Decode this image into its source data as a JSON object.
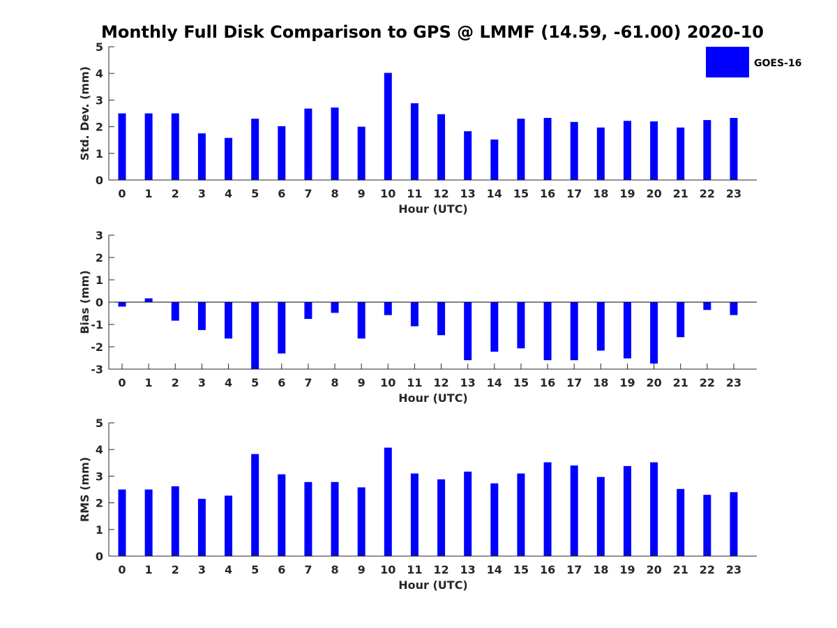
{
  "figure": {
    "title": "Monthly Full Disk Comparison to GPS @ LMMF (14.59, -61.00) 2020-10"
  },
  "legend": {
    "label": "GOES-16",
    "color": "#0000ff"
  },
  "chart_data": [
    {
      "type": "bar",
      "title": "",
      "xlabel": "Hour (UTC)",
      "ylabel": "Std. Dev. (mm)",
      "ylim": [
        0,
        5
      ],
      "yticks": [
        0,
        1,
        2,
        3,
        4,
        5
      ],
      "categories": [
        "0",
        "1",
        "2",
        "3",
        "4",
        "5",
        "6",
        "7",
        "8",
        "9",
        "10",
        "11",
        "12",
        "13",
        "14",
        "15",
        "16",
        "17",
        "18",
        "19",
        "20",
        "21",
        "22",
        "23"
      ],
      "series": [
        {
          "name": "GOES-16",
          "values": [
            2.5,
            2.5,
            2.5,
            1.75,
            1.58,
            2.3,
            2.02,
            2.68,
            2.72,
            2.0,
            4.02,
            2.88,
            2.47,
            1.83,
            1.52,
            2.3,
            2.33,
            2.18,
            1.97,
            2.22,
            2.2,
            1.97,
            2.25,
            2.33
          ]
        }
      ]
    },
    {
      "type": "bar",
      "title": "",
      "xlabel": "Hour (UTC)",
      "ylabel": "Bias (mm)",
      "ylim": [
        -3,
        3
      ],
      "yticks": [
        -3,
        -2,
        -1,
        0,
        1,
        2,
        3
      ],
      "categories": [
        "0",
        "1",
        "2",
        "3",
        "4",
        "5",
        "6",
        "7",
        "8",
        "9",
        "10",
        "11",
        "12",
        "13",
        "14",
        "15",
        "16",
        "17",
        "18",
        "19",
        "20",
        "21",
        "22",
        "23"
      ],
      "series": [
        {
          "name": "GOES-16",
          "values": [
            -0.2,
            0.17,
            -0.83,
            -1.25,
            -1.63,
            -3.0,
            -2.3,
            -0.75,
            -0.48,
            -1.63,
            -0.58,
            -1.08,
            -1.48,
            -2.6,
            -2.22,
            -2.07,
            -2.6,
            -2.6,
            -2.17,
            -2.52,
            -2.75,
            -1.57,
            -0.35,
            -0.58
          ]
        }
      ]
    },
    {
      "type": "bar",
      "title": "",
      "xlabel": "Hour (UTC)",
      "ylabel": "RMS (mm)",
      "ylim": [
        0,
        5
      ],
      "yticks": [
        0,
        1,
        2,
        3,
        4,
        5
      ],
      "categories": [
        "0",
        "1",
        "2",
        "3",
        "4",
        "5",
        "6",
        "7",
        "8",
        "9",
        "10",
        "11",
        "12",
        "13",
        "14",
        "15",
        "16",
        "17",
        "18",
        "19",
        "20",
        "21",
        "22",
        "23"
      ],
      "series": [
        {
          "name": "GOES-16",
          "values": [
            2.5,
            2.5,
            2.62,
            2.15,
            2.27,
            3.83,
            3.07,
            2.78,
            2.78,
            2.58,
            4.07,
            3.1,
            2.88,
            3.17,
            2.73,
            3.1,
            3.52,
            3.4,
            2.97,
            3.38,
            3.52,
            2.52,
            2.3,
            2.4
          ]
        }
      ]
    }
  ]
}
